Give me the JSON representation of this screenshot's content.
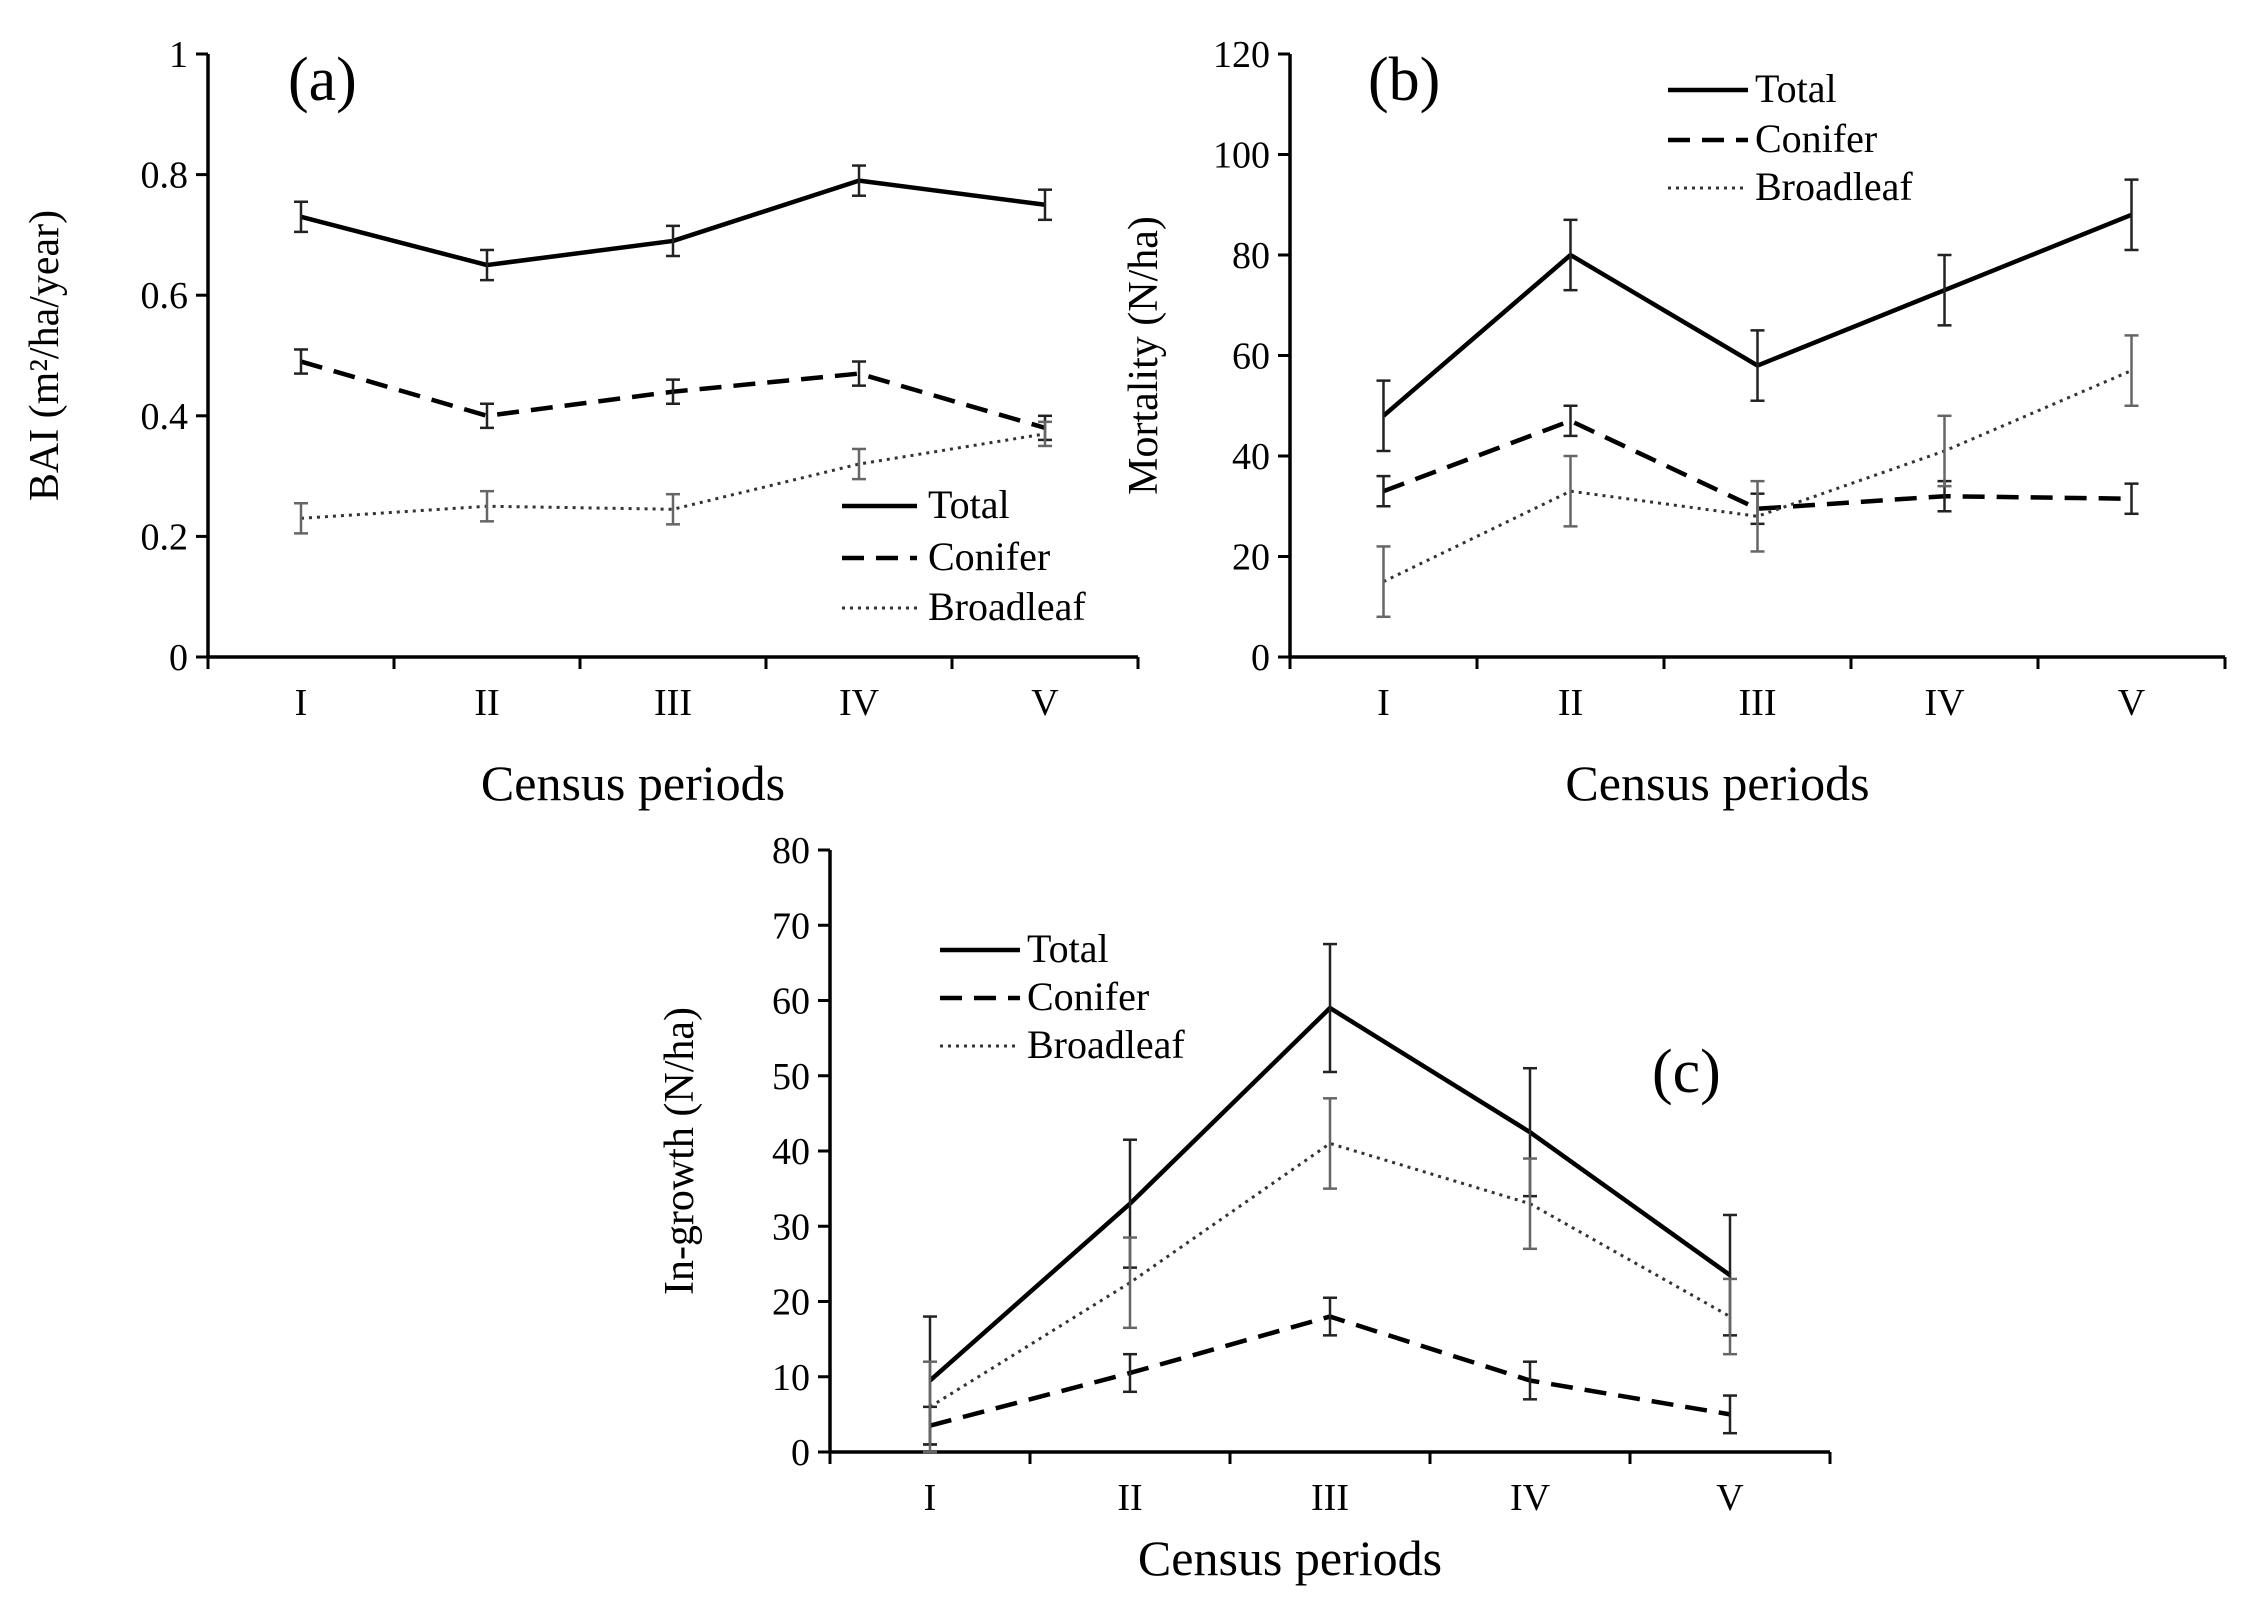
{
  "figure": {
    "panels": [
      "a",
      "b",
      "c"
    ]
  },
  "chart_data": [
    {
      "id": "a",
      "type": "line",
      "panel_label": "(a)",
      "title": "",
      "xlabel": "Census periods",
      "ylabel": "BAI (m²/ha/year)",
      "categories": [
        "I",
        "II",
        "III",
        "IV",
        "V"
      ],
      "ylim": [
        0,
        1
      ],
      "yticks": [
        "0",
        "0.2",
        "0.4",
        "0.6",
        "0.8",
        "1"
      ],
      "ytick_values": [
        0,
        0.2,
        0.4,
        0.6,
        0.8,
        1
      ],
      "legend_position": "bottom-right",
      "series": [
        {
          "name": "Total",
          "style": "solid",
          "values": [
            0.73,
            0.65,
            0.69,
            0.79,
            0.75
          ],
          "errors": [
            0.025,
            0.025,
            0.025,
            0.025,
            0.025
          ]
        },
        {
          "name": "Conifer",
          "style": "dashed",
          "values": [
            0.49,
            0.4,
            0.44,
            0.47,
            0.38
          ],
          "errors": [
            0.02,
            0.02,
            0.02,
            0.02,
            0.02
          ]
        },
        {
          "name": "Broadleaf",
          "style": "dotted",
          "values": [
            0.23,
            0.25,
            0.245,
            0.32,
            0.37
          ],
          "errors": [
            0.025,
            0.025,
            0.025,
            0.025,
            0.02
          ]
        }
      ]
    },
    {
      "id": "b",
      "type": "line",
      "panel_label": "(b)",
      "title": "",
      "xlabel": "Census periods",
      "ylabel": "Mortality (N/ha)",
      "categories": [
        "I",
        "II",
        "III",
        "IV",
        "V"
      ],
      "ylim": [
        0,
        120
      ],
      "yticks": [
        "0",
        "20",
        "40",
        "60",
        "80",
        "100",
        "120"
      ],
      "ytick_values": [
        0,
        20,
        40,
        60,
        80,
        100,
        120
      ],
      "legend_position": "top-right",
      "series": [
        {
          "name": "Total",
          "style": "solid",
          "values": [
            48,
            80,
            58,
            73,
            88
          ],
          "errors": [
            7,
            7,
            7,
            7,
            7
          ]
        },
        {
          "name": "Conifer",
          "style": "dashed",
          "values": [
            33,
            47,
            29.5,
            32,
            31.5
          ],
          "errors": [
            3,
            3,
            3,
            3,
            3
          ]
        },
        {
          "name": "Broadleaf",
          "style": "dotted",
          "values": [
            15,
            33,
            28,
            41,
            57
          ],
          "errors": [
            7,
            7,
            7,
            7,
            7
          ]
        }
      ]
    },
    {
      "id": "c",
      "type": "line",
      "panel_label": "(c)",
      "title": "",
      "xlabel": "Census periods",
      "ylabel": "In-growth (N/ha)",
      "categories": [
        "I",
        "II",
        "III",
        "IV",
        "V"
      ],
      "ylim": [
        0,
        80
      ],
      "yticks": [
        "0",
        "10",
        "20",
        "30",
        "40",
        "50",
        "60",
        "70",
        "80"
      ],
      "ytick_values": [
        0,
        10,
        20,
        30,
        40,
        50,
        60,
        70,
        80
      ],
      "legend_position": "top-left",
      "series": [
        {
          "name": "Total",
          "style": "solid",
          "values": [
            9.5,
            33,
            59,
            42.5,
            23.5
          ],
          "errors": [
            8.5,
            8.5,
            8.5,
            8.5,
            8
          ]
        },
        {
          "name": "Conifer",
          "style": "dashed",
          "values": [
            3.5,
            10.5,
            18,
            9.5,
            5
          ],
          "errors": [
            2.5,
            2.5,
            2.5,
            2.5,
            2.5
          ]
        },
        {
          "name": "Broadleaf",
          "style": "dotted",
          "values": [
            6,
            22.5,
            41,
            33,
            18
          ],
          "errors": [
            6,
            6,
            6,
            6,
            5
          ]
        }
      ]
    }
  ]
}
